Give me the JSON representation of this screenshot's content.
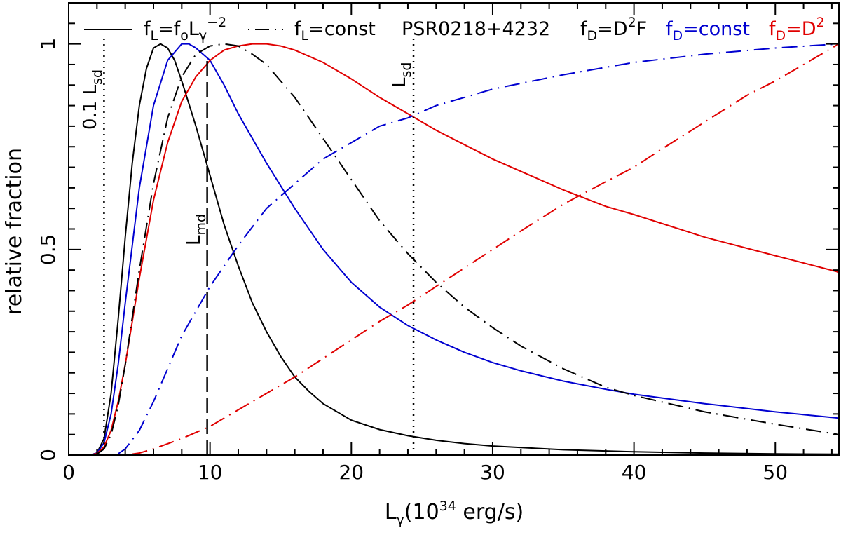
{
  "chart_data": {
    "type": "line",
    "title": "",
    "xlabel": {
      "base": "L",
      "sub": "γ",
      "text1": "(10",
      "sup": "34",
      "text2": " erg/s)"
    },
    "ylabel": "relative fraction",
    "xlim": [
      0,
      54.5
    ],
    "ylim": [
      0,
      1.1
    ],
    "x_ticks": [
      0,
      10,
      20,
      30,
      40,
      50
    ],
    "y_ticks": [
      0,
      0.5,
      1
    ],
    "y_tick_labels": [
      "0",
      "0.5",
      "1"
    ],
    "legend": {
      "f_power": {
        "base": "f",
        "sub": "L",
        "eq": "=f",
        "sub2": "o",
        "base2": "L",
        "sub3": "γ",
        "sup": "−2"
      },
      "f_const": {
        "base": "f",
        "sub": "L",
        "eq": "=const"
      },
      "pulsar": "PSR0218+4232",
      "fd_d2f": {
        "base": "f",
        "sub": "D",
        "eq": "=D",
        "sup": "2",
        "tail": "F"
      },
      "fd_const": {
        "base": "f",
        "sub": "D",
        "eq": "=const"
      },
      "fd_d2": {
        "base": "f",
        "sub": "D",
        "eq": "=D",
        "sup": "2"
      }
    },
    "colors": {
      "black": "#000000",
      "blue": "#0000d0",
      "red": "#e00000"
    },
    "vlines": [
      {
        "x": 2.5,
        "style": "dotted",
        "label": {
          "base": "0.1 L",
          "sub": "sd"
        }
      },
      {
        "x": 9.8,
        "style": "dashed",
        "label": {
          "base": "L",
          "sub": "md"
        }
      },
      {
        "x": 24.4,
        "style": "dotted",
        "label": {
          "base": "L",
          "sub": "sd"
        }
      }
    ],
    "series": [
      {
        "name": "black solid (f_L=f_o L^-2, f_D=D^2F)",
        "color": "black",
        "style": "solid",
        "x": [
          1.5,
          2.0,
          2.5,
          3.0,
          3.5,
          4.0,
          4.5,
          5.0,
          5.5,
          6.0,
          6.5,
          7.0,
          7.5,
          8.0,
          9.0,
          10.0,
          11.0,
          12.0,
          13.0,
          14.0,
          15.0,
          16.0,
          17.0,
          18.0,
          20.0,
          22.0,
          24.0,
          26.0,
          28.0,
          30.0,
          35.0,
          40.0,
          45.0,
          50.0,
          54.5
        ],
        "y": [
          0.0,
          0.005,
          0.04,
          0.15,
          0.33,
          0.53,
          0.71,
          0.85,
          0.94,
          0.99,
          1.0,
          0.99,
          0.96,
          0.91,
          0.8,
          0.68,
          0.56,
          0.46,
          0.37,
          0.3,
          0.24,
          0.19,
          0.155,
          0.125,
          0.085,
          0.062,
          0.047,
          0.036,
          0.028,
          0.022,
          0.013,
          0.008,
          0.005,
          0.003,
          0.002
        ]
      },
      {
        "name": "blue solid (f_L=f_o L^-2, f_D=const)",
        "color": "blue",
        "style": "solid",
        "x": [
          1.5,
          2.0,
          2.5,
          3.0,
          3.5,
          4.0,
          5.0,
          6.0,
          7.0,
          8.0,
          8.5,
          9.0,
          10.0,
          11.0,
          12.0,
          14.0,
          16.0,
          18.0,
          20.0,
          22.0,
          24.0,
          26.0,
          28.0,
          30.0,
          32.0,
          35.0,
          38.0,
          40.0,
          45.0,
          50.0,
          54.5
        ],
        "y": [
          0.0,
          0.005,
          0.03,
          0.1,
          0.22,
          0.37,
          0.65,
          0.85,
          0.96,
          1.0,
          1.0,
          0.99,
          0.96,
          0.9,
          0.83,
          0.71,
          0.6,
          0.5,
          0.42,
          0.36,
          0.315,
          0.28,
          0.25,
          0.225,
          0.205,
          0.18,
          0.16,
          0.148,
          0.125,
          0.105,
          0.09
        ]
      },
      {
        "name": "red solid (f_L=f_o L^-2, f_D=D^2)",
        "color": "red",
        "style": "solid",
        "x": [
          1.5,
          2.0,
          2.5,
          3.0,
          3.5,
          4.0,
          5.0,
          6.0,
          7.0,
          8.0,
          9.0,
          10.0,
          11.0,
          12.0,
          13.0,
          14.0,
          15.0,
          16.0,
          18.0,
          20.0,
          22.0,
          24.0,
          26.0,
          28.0,
          30.0,
          32.0,
          35.0,
          38.0,
          40.0,
          45.0,
          50.0,
          54.5
        ],
        "y": [
          0.0,
          0.004,
          0.02,
          0.06,
          0.13,
          0.22,
          0.43,
          0.62,
          0.76,
          0.86,
          0.92,
          0.96,
          0.985,
          0.995,
          1.0,
          1.0,
          0.995,
          0.985,
          0.955,
          0.915,
          0.87,
          0.83,
          0.79,
          0.755,
          0.72,
          0.69,
          0.645,
          0.605,
          0.585,
          0.53,
          0.485,
          0.445
        ]
      },
      {
        "name": "black dash-dot (f_L=const, f_D=D^2F)",
        "color": "black",
        "style": "dashdot",
        "x": [
          1.5,
          2.0,
          2.5,
          3.0,
          3.5,
          4.0,
          5.0,
          6.0,
          7.0,
          8.0,
          9.0,
          10.0,
          11.0,
          12.0,
          13.0,
          14.0,
          16.0,
          18.0,
          20.0,
          22.0,
          24.0,
          26.0,
          28.0,
          30.0,
          32.0,
          35.0,
          38.0,
          40.0,
          45.0,
          50.0,
          54.5
        ],
        "y": [
          0.0,
          0.002,
          0.015,
          0.05,
          0.12,
          0.22,
          0.45,
          0.66,
          0.82,
          0.92,
          0.975,
          0.995,
          1.0,
          0.995,
          0.975,
          0.95,
          0.87,
          0.77,
          0.67,
          0.57,
          0.49,
          0.42,
          0.36,
          0.31,
          0.265,
          0.21,
          0.165,
          0.145,
          0.105,
          0.075,
          0.05
        ]
      },
      {
        "name": "blue dash-dot (f_L=const, f_D=const)",
        "color": "blue",
        "style": "dashdot",
        "x": [
          3.0,
          3.5,
          4.0,
          5.0,
          6.0,
          7.0,
          8.0,
          9.0,
          10.0,
          11.0,
          12.0,
          14.0,
          16.0,
          18.0,
          20.0,
          22.0,
          24.0,
          26.0,
          28.0,
          30.0,
          35.0,
          40.0,
          45.0,
          50.0,
          54.5
        ],
        "y": [
          0.0,
          0.003,
          0.015,
          0.06,
          0.13,
          0.21,
          0.29,
          0.35,
          0.41,
          0.46,
          0.51,
          0.6,
          0.66,
          0.72,
          0.76,
          0.8,
          0.82,
          0.85,
          0.87,
          0.89,
          0.925,
          0.955,
          0.975,
          0.99,
          1.0
        ]
      },
      {
        "name": "red dash-dot (f_L=const, f_D=D^2)",
        "color": "red",
        "style": "dashdot",
        "x": [
          4.0,
          5.0,
          6.0,
          8.0,
          10.0,
          12.0,
          14.0,
          16.0,
          18.0,
          20.0,
          22.0,
          24.0,
          26.0,
          28.0,
          30.0,
          32.0,
          35.0,
          38.0,
          40.0,
          42.0,
          45.0,
          48.0,
          50.0,
          52.0,
          54.5
        ],
        "y": [
          0.0,
          0.005,
          0.015,
          0.04,
          0.07,
          0.11,
          0.15,
          0.19,
          0.235,
          0.28,
          0.325,
          0.365,
          0.41,
          0.455,
          0.5,
          0.545,
          0.61,
          0.665,
          0.7,
          0.745,
          0.81,
          0.875,
          0.91,
          0.95,
          1.0
        ]
      }
    ]
  }
}
